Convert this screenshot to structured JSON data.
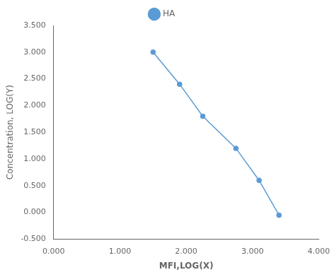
{
  "chart_data": {
    "type": "line",
    "x": [
      1.5,
      1.9,
      2.25,
      2.75,
      3.1,
      3.4
    ],
    "series": [
      {
        "name": "HA",
        "color": "#5B9BD5",
        "marker": "circle",
        "line_style": "solid",
        "values": [
          3.0,
          2.4,
          1.8,
          1.2,
          0.6,
          -0.05
        ]
      }
    ],
    "xlabel": "MFI,LOG(X)",
    "ylabel": "Concentration, LOG(Y)",
    "xlim": [
      0.0,
      4.0
    ],
    "ylim": [
      -0.5,
      3.5
    ],
    "xticks": [
      {
        "value": 0,
        "label": "0.000"
      },
      {
        "value": 1,
        "label": "1.000"
      },
      {
        "value": 2,
        "label": "2.000"
      },
      {
        "value": 3,
        "label": "3.000"
      },
      {
        "value": 4,
        "label": "4.000"
      }
    ],
    "yticks": [
      {
        "value": -0.5,
        "label": "-0.500"
      },
      {
        "value": 0,
        "label": "0.000"
      },
      {
        "value": 0.5,
        "label": "0.500"
      },
      {
        "value": 1,
        "label": "1.000"
      },
      {
        "value": 1.5,
        "label": "1.500"
      },
      {
        "value": 2,
        "label": "2.000"
      },
      {
        "value": 2.5,
        "label": "2.500"
      },
      {
        "value": 3,
        "label": "3.000"
      },
      {
        "value": 3.5,
        "label": "3.500"
      }
    ],
    "grid": false,
    "legend": "top"
  }
}
